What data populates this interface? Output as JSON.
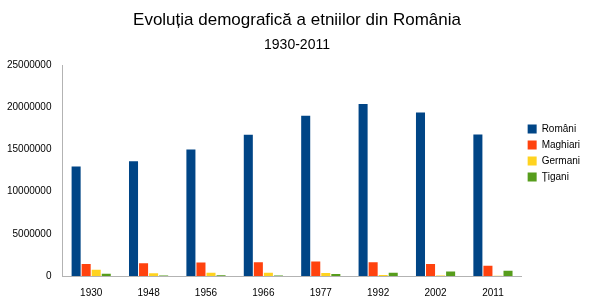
{
  "chart_data": {
    "type": "bar",
    "title": "Evoluția demografică a etniilor din România",
    "subtitle": "1930-2011",
    "categories": [
      "1930",
      "1948",
      "1956",
      "1966",
      "1977",
      "1992",
      "2002",
      "2011"
    ],
    "series": [
      {
        "name": "Români",
        "color": "#004586",
        "values": [
          12980000,
          13600000,
          15000000,
          16750000,
          19000000,
          20410000,
          19400000,
          16790000
        ]
      },
      {
        "name": "Maghiari",
        "color": "#ff420e",
        "values": [
          1430000,
          1500000,
          1590000,
          1620000,
          1710000,
          1620000,
          1430000,
          1230000
        ]
      },
      {
        "name": "Germani",
        "color": "#ffd320",
        "values": [
          750000,
          340000,
          380000,
          380000,
          360000,
          120000,
          60000,
          40000
        ]
      },
      {
        "name": "Țigani",
        "color": "#579d1c",
        "values": [
          260000,
          50000,
          100000,
          60000,
          230000,
          400000,
          540000,
          620000
        ]
      }
    ],
    "ylim": [
      0,
      25000000
    ],
    "yticks": [
      0,
      5000000,
      10000000,
      15000000,
      20000000,
      25000000
    ],
    "grid": false,
    "legend": "right"
  }
}
